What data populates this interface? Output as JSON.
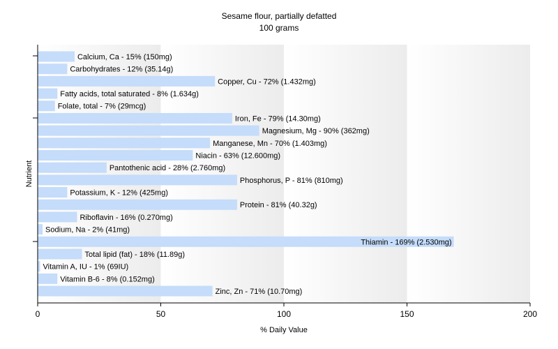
{
  "chart_data": {
    "type": "bar",
    "orientation": "horizontal",
    "title": "Sesame flour, partially defatted",
    "subtitle": "100 grams",
    "xlabel": "% Daily Value",
    "ylabel": "Nutrient",
    "xlim": [
      0,
      200
    ],
    "xticks": [
      0,
      50,
      100,
      150,
      200
    ],
    "grid": "vertical gradient bands",
    "legend": "none",
    "bar_color": "#c5dcfa",
    "categories": [
      "Calcium, Ca",
      "Carbohydrates",
      "Copper, Cu",
      "Fatty acids, total saturated",
      "Folate, total",
      "Iron, Fe",
      "Magnesium, Mg",
      "Manganese, Mn",
      "Niacin",
      "Pantothenic acid",
      "Phosphorus, P",
      "Potassium, K",
      "Protein",
      "Riboflavin",
      "Sodium, Na",
      "Thiamin",
      "Total lipid (fat)",
      "Vitamin A, IU",
      "Vitamin B-6",
      "Zinc, Zn"
    ],
    "values": [
      15,
      12,
      72,
      8,
      7,
      79,
      90,
      70,
      63,
      28,
      81,
      12,
      81,
      16,
      2,
      169,
      18,
      1,
      8,
      71
    ],
    "labels": [
      "Calcium, Ca - 15% (150mg)",
      "Carbohydrates - 12% (35.14g)",
      "Copper, Cu - 72% (1.432mg)",
      "Fatty acids, total saturated - 8% (1.634g)",
      "Folate, total - 7% (29mcg)",
      "Iron, Fe - 79% (14.30mg)",
      "Magnesium, Mg - 90% (362mg)",
      "Manganese, Mn - 70% (1.403mg)",
      "Niacin - 63% (12.600mg)",
      "Pantothenic acid - 28% (2.760mg)",
      "Phosphorus, P - 81% (810mg)",
      "Potassium, K - 12% (425mg)",
      "Protein - 81% (40.32g)",
      "Riboflavin - 16% (0.270mg)",
      "Sodium, Na - 2% (41mg)",
      "Thiamin - 169% (2.530mg)",
      "Total lipid (fat) - 18% (11.89g)",
      "Vitamin A, IU - 1% (69IU)",
      "Vitamin B-6 - 8% (0.152mg)",
      "Zinc, Zn - 71% (10.70mg)"
    ]
  }
}
